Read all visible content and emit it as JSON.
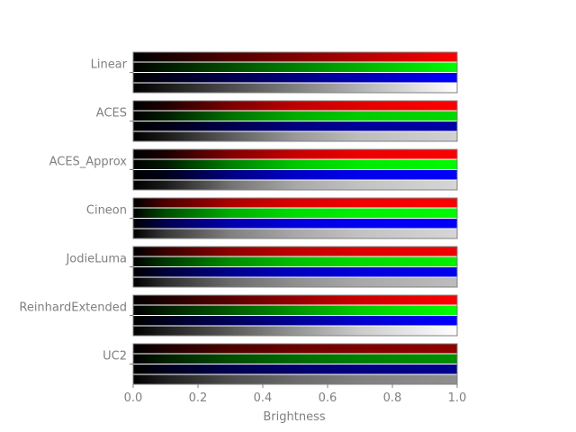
{
  "chart_data": {
    "type": "heatmap",
    "title": "",
    "xlabel": "Brightness",
    "ylabel": "",
    "xlim": [
      0.0,
      1.0
    ],
    "xticks": [
      "0.0",
      "0.2",
      "0.4",
      "0.6",
      "0.8",
      "1.0"
    ],
    "grid": false,
    "legend": "none",
    "channels": [
      "red",
      "green",
      "blue",
      "gray"
    ],
    "channel_colors": [
      "#ff0000",
      "#00ff00",
      "#0000ff",
      "#ffffff"
    ],
    "tonemappers": [
      {
        "name": "Linear",
        "curves": {
          "red": [
            [
              0,
              0
            ],
            [
              1,
              1
            ]
          ],
          "green": [
            [
              0,
              0
            ],
            [
              1,
              1
            ]
          ],
          "blue": [
            [
              0,
              0
            ],
            [
              1,
              1
            ]
          ],
          "gray": [
            [
              0,
              0
            ],
            [
              1,
              1
            ]
          ]
        }
      },
      {
        "name": "ACES",
        "curves": {
          "red": [
            [
              0,
              0
            ],
            [
              0.1,
              0.12
            ],
            [
              0.3,
              0.48
            ],
            [
              0.5,
              0.74
            ],
            [
              0.7,
              0.88
            ],
            [
              1,
              1
            ]
          ],
          "green": [
            [
              0,
              0
            ],
            [
              0.1,
              0.11
            ],
            [
              0.3,
              0.44
            ],
            [
              0.5,
              0.68
            ],
            [
              0.7,
              0.8
            ],
            [
              1,
              0.85
            ]
          ],
          "blue": [
            [
              0,
              0
            ],
            [
              0.1,
              0.08
            ],
            [
              0.3,
              0.3
            ],
            [
              0.5,
              0.5
            ],
            [
              0.7,
              0.6
            ],
            [
              1,
              0.65
            ]
          ],
          "gray": [
            [
              0,
              0
            ],
            [
              0.1,
              0.1
            ],
            [
              0.3,
              0.36
            ],
            [
              0.5,
              0.6
            ],
            [
              0.7,
              0.74
            ],
            [
              1,
              0.82
            ]
          ]
        }
      },
      {
        "name": "ACES_Approx",
        "curves": {
          "red": [
            [
              0,
              0
            ],
            [
              0.1,
              0.1
            ],
            [
              0.3,
              0.5
            ],
            [
              0.5,
              0.78
            ],
            [
              0.7,
              0.92
            ],
            [
              1,
              0.98
            ]
          ],
          "green": [
            [
              0,
              0
            ],
            [
              0.1,
              0.1
            ],
            [
              0.3,
              0.5
            ],
            [
              0.5,
              0.78
            ],
            [
              0.7,
              0.92
            ],
            [
              1,
              0.98
            ]
          ],
          "blue": [
            [
              0,
              0
            ],
            [
              0.1,
              0.1
            ],
            [
              0.3,
              0.5
            ],
            [
              0.5,
              0.78
            ],
            [
              0.7,
              0.92
            ],
            [
              1,
              0.98
            ]
          ],
          "gray": [
            [
              0,
              0
            ],
            [
              0.1,
              0.1
            ],
            [
              0.3,
              0.45
            ],
            [
              0.5,
              0.66
            ],
            [
              0.7,
              0.76
            ],
            [
              1,
              0.84
            ]
          ]
        }
      },
      {
        "name": "Cineon",
        "curves": {
          "red": [
            [
              0,
              0
            ],
            [
              0.1,
              0.3
            ],
            [
              0.3,
              0.68
            ],
            [
              0.5,
              0.86
            ],
            [
              0.7,
              0.94
            ],
            [
              1,
              0.98
            ]
          ],
          "green": [
            [
              0,
              0
            ],
            [
              0.1,
              0.3
            ],
            [
              0.3,
              0.68
            ],
            [
              0.5,
              0.86
            ],
            [
              0.7,
              0.94
            ],
            [
              1,
              0.98
            ]
          ],
          "blue": [
            [
              0,
              0
            ],
            [
              0.1,
              0.3
            ],
            [
              0.3,
              0.68
            ],
            [
              0.5,
              0.86
            ],
            [
              0.7,
              0.94
            ],
            [
              1,
              0.98
            ]
          ],
          "gray": [
            [
              0,
              0
            ],
            [
              0.1,
              0.22
            ],
            [
              0.3,
              0.5
            ],
            [
              0.5,
              0.66
            ],
            [
              0.7,
              0.76
            ],
            [
              1,
              0.84
            ]
          ]
        }
      },
      {
        "name": "JodieLuma",
        "curves": {
          "red": [
            [
              0,
              0
            ],
            [
              0.1,
              0.22
            ],
            [
              0.3,
              0.55
            ],
            [
              0.5,
              0.75
            ],
            [
              0.7,
              0.86
            ],
            [
              1,
              0.94
            ]
          ],
          "green": [
            [
              0,
              0
            ],
            [
              0.1,
              0.22
            ],
            [
              0.3,
              0.55
            ],
            [
              0.5,
              0.75
            ],
            [
              0.7,
              0.86
            ],
            [
              1,
              0.94
            ]
          ],
          "blue": [
            [
              0,
              0
            ],
            [
              0.1,
              0.22
            ],
            [
              0.3,
              0.55
            ],
            [
              0.5,
              0.75
            ],
            [
              0.7,
              0.86
            ],
            [
              1,
              0.94
            ]
          ],
          "gray": [
            [
              0,
              0
            ],
            [
              0.1,
              0.18
            ],
            [
              0.3,
              0.42
            ],
            [
              0.5,
              0.56
            ],
            [
              0.7,
              0.66
            ],
            [
              1,
              0.74
            ]
          ]
        }
      },
      {
        "name": "ReinhardExtended",
        "curves": {
          "red": [
            [
              0,
              0
            ],
            [
              0.1,
              0.12
            ],
            [
              0.3,
              0.35
            ],
            [
              0.5,
              0.58
            ],
            [
              0.7,
              0.8
            ],
            [
              1,
              1
            ]
          ],
          "green": [
            [
              0,
              0
            ],
            [
              0.1,
              0.12
            ],
            [
              0.3,
              0.35
            ],
            [
              0.5,
              0.58
            ],
            [
              0.7,
              0.8
            ],
            [
              1,
              1
            ]
          ],
          "blue": [
            [
              0,
              0
            ],
            [
              0.1,
              0.12
            ],
            [
              0.3,
              0.35
            ],
            [
              0.5,
              0.58
            ],
            [
              0.7,
              0.8
            ],
            [
              1,
              1
            ]
          ],
          "gray": [
            [
              0,
              0
            ],
            [
              0.1,
              0.12
            ],
            [
              0.3,
              0.35
            ],
            [
              0.5,
              0.58
            ],
            [
              0.7,
              0.8
            ],
            [
              1,
              1
            ]
          ]
        }
      },
      {
        "name": "UC2",
        "curves": {
          "red": [
            [
              0,
              0
            ],
            [
              0.1,
              0.12
            ],
            [
              0.3,
              0.3
            ],
            [
              0.5,
              0.42
            ],
            [
              0.7,
              0.5
            ],
            [
              1,
              0.56
            ]
          ],
          "green": [
            [
              0,
              0
            ],
            [
              0.1,
              0.12
            ],
            [
              0.3,
              0.3
            ],
            [
              0.5,
              0.42
            ],
            [
              0.7,
              0.5
            ],
            [
              1,
              0.56
            ]
          ],
          "blue": [
            [
              0,
              0
            ],
            [
              0.1,
              0.12
            ],
            [
              0.3,
              0.3
            ],
            [
              0.5,
              0.42
            ],
            [
              0.7,
              0.5
            ],
            [
              1,
              0.56
            ]
          ],
          "gray": [
            [
              0,
              0
            ],
            [
              0.1,
              0.12
            ],
            [
              0.3,
              0.3
            ],
            [
              0.5,
              0.42
            ],
            [
              0.7,
              0.5
            ],
            [
              1,
              0.56
            ]
          ]
        }
      }
    ]
  }
}
